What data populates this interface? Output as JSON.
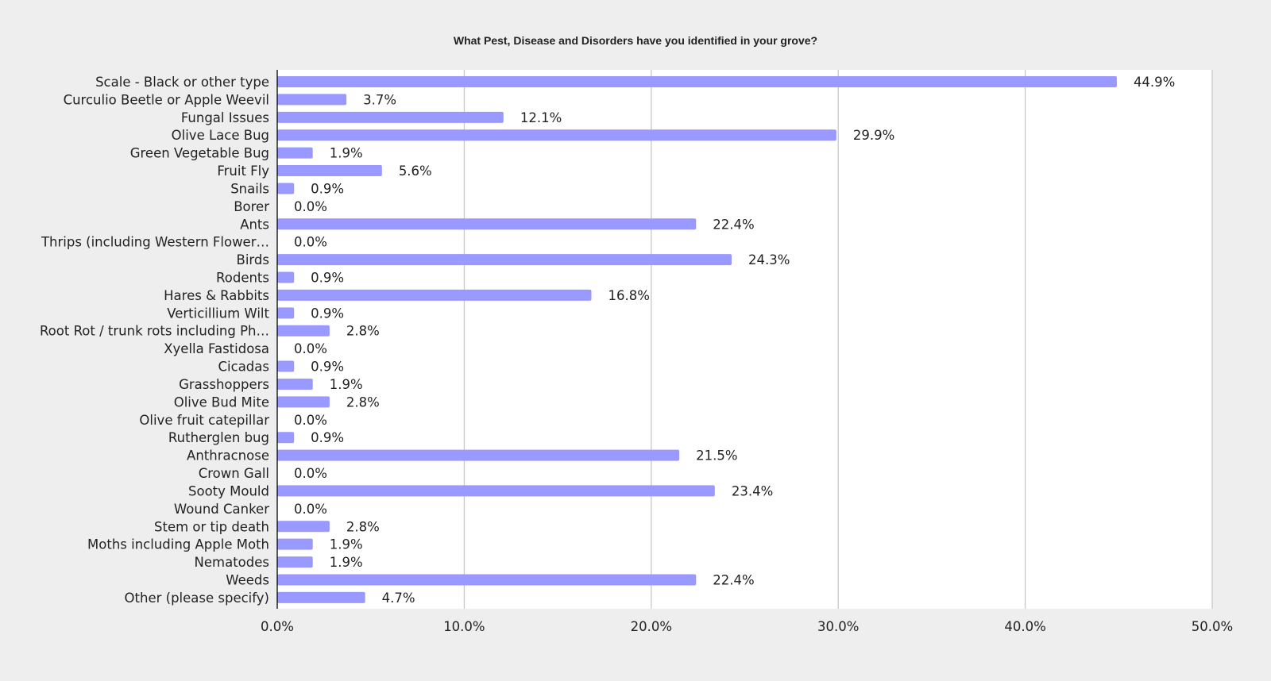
{
  "chart_data": {
    "type": "bar",
    "orientation": "horizontal",
    "title": "What Pest, Disease and Disorders have you identified in your grove?",
    "categories": [
      "Scale - Black or other type",
      "Curculio Beetle or Apple Weevil",
      "Fungal Issues",
      "Olive Lace Bug",
      "Green Vegetable Bug",
      "Fruit Fly",
      "Snails",
      "Borer",
      "Ants",
      "Thrips (including Western Flower…",
      "Birds",
      "Rodents",
      "Hares & Rabbits",
      "Verticillium Wilt",
      "Root Rot / trunk rots including Ph…",
      "Xyella Fastidosa",
      "Cicadas",
      "Grasshoppers",
      "Olive Bud Mite",
      "Olive fruit catepillar",
      "Rutherglen bug",
      "Anthracnose",
      "Crown Gall",
      "Sooty Mould",
      "Wound Canker",
      "Stem or tip death",
      "Moths including Apple Moth",
      "Nematodes",
      "Weeds",
      "Other (please specify)"
    ],
    "values": [
      44.9,
      3.7,
      12.1,
      29.9,
      1.9,
      5.6,
      0.9,
      0.0,
      22.4,
      0.0,
      24.3,
      0.9,
      16.8,
      0.9,
      2.8,
      0.0,
      0.9,
      1.9,
      2.8,
      0.0,
      0.9,
      21.5,
      0.0,
      23.4,
      0.0,
      2.8,
      1.9,
      1.9,
      22.4,
      4.7
    ],
    "value_labels": [
      "44.9%",
      "3.7%",
      "12.1%",
      "29.9%",
      "1.9%",
      "5.6%",
      "0.9%",
      "0.0%",
      "22.4%",
      "0.0%",
      "24.3%",
      "0.9%",
      "16.8%",
      "0.9%",
      "2.8%",
      "0.0%",
      "0.9%",
      "1.9%",
      "2.8%",
      "0.0%",
      "0.9%",
      "21.5%",
      "0.0%",
      "23.4%",
      "0.0%",
      "2.8%",
      "1.9%",
      "1.9%",
      "22.4%",
      "4.7%"
    ],
    "xlim": [
      0,
      50
    ],
    "xticks": [
      0,
      10,
      20,
      30,
      40,
      50
    ],
    "xtick_labels": [
      "0.0%",
      "10.0%",
      "20.0%",
      "30.0%",
      "40.0%",
      "50.0%"
    ],
    "grid": true,
    "bar_color": "#9999ff",
    "grid_color": "#c8c8c8",
    "plot_background": "#ffffff",
    "page_background": "#eeeeee"
  }
}
